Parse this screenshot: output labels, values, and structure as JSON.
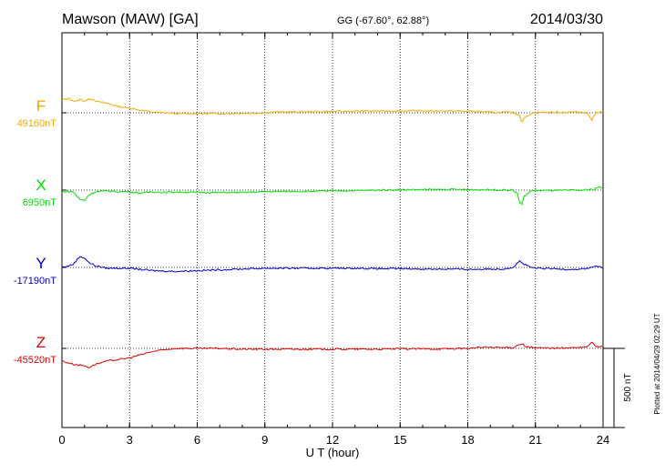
{
  "chart_data": {
    "type": "line",
    "title": "Mawson (MAW)  [GA]",
    "subtitle": "GG (-67.60°,  62.88°)",
    "date": "2014/03/30",
    "xlabel": "U T (hour)",
    "xlim": [
      0,
      24
    ],
    "xticks": [
      "0",
      "3",
      "6",
      "9",
      "12",
      "15",
      "18",
      "21",
      "24"
    ],
    "grid": true,
    "scale_bar_label": "500 nT",
    "footer": "Plotted at 2014/04/29 02:29 UT",
    "series": [
      {
        "name": "F",
        "baseline_label": "49160nT",
        "color": "#f0a800",
        "baseline": 49160,
        "points": [
          [
            0,
            80
          ],
          [
            0.3,
            90
          ],
          [
            0.6,
            70
          ],
          [
            0.8,
            85
          ],
          [
            1.0,
            75
          ],
          [
            1.3,
            90
          ],
          [
            1.6,
            70
          ],
          [
            2.0,
            60
          ],
          [
            2.5,
            40
          ],
          [
            3.0,
            30
          ],
          [
            3.5,
            15
          ],
          [
            4.0,
            5
          ],
          [
            4.5,
            0
          ],
          [
            5.0,
            -5
          ],
          [
            6.0,
            -5
          ],
          [
            7.0,
            -5
          ],
          [
            8.0,
            -3
          ],
          [
            9.0,
            0
          ],
          [
            9.5,
            5
          ],
          [
            10,
            5
          ],
          [
            11,
            7
          ],
          [
            12,
            8
          ],
          [
            13,
            10
          ],
          [
            14,
            11
          ],
          [
            15,
            12
          ],
          [
            16,
            12
          ],
          [
            17,
            12
          ],
          [
            18,
            10
          ],
          [
            18.9,
            5
          ],
          [
            19.2,
            0
          ],
          [
            19.5,
            3
          ],
          [
            20.0,
            2
          ],
          [
            20.3,
            -15
          ],
          [
            20.4,
            -55
          ],
          [
            20.5,
            -35
          ],
          [
            20.8,
            -5
          ],
          [
            21,
            2
          ],
          [
            22,
            3
          ],
          [
            23,
            5
          ],
          [
            23.3,
            0
          ],
          [
            23.5,
            -45
          ],
          [
            23.7,
            3
          ],
          [
            24,
            8
          ]
        ]
      },
      {
        "name": "X",
        "baseline_label": "6950nT",
        "color": "#00dd00",
        "baseline": 6950,
        "points": [
          [
            0,
            -10
          ],
          [
            0.5,
            -10
          ],
          [
            0.8,
            -60
          ],
          [
            1.0,
            -65
          ],
          [
            1.2,
            -30
          ],
          [
            1.5,
            -10
          ],
          [
            2.0,
            -5
          ],
          [
            2.5,
            -10
          ],
          [
            3.0,
            -10
          ],
          [
            3.5,
            -20
          ],
          [
            4.0,
            -10
          ],
          [
            4.5,
            -15
          ],
          [
            5.0,
            -12
          ],
          [
            6.0,
            -15
          ],
          [
            7.0,
            -15
          ],
          [
            8.0,
            -15
          ],
          [
            9.0,
            -10
          ],
          [
            10,
            -8
          ],
          [
            11,
            -8
          ],
          [
            12,
            -5
          ],
          [
            13,
            -3
          ],
          [
            14,
            0
          ],
          [
            15,
            2
          ],
          [
            16,
            3
          ],
          [
            17,
            4
          ],
          [
            18,
            3
          ],
          [
            19,
            2
          ],
          [
            20,
            0
          ],
          [
            20.2,
            -20
          ],
          [
            20.3,
            -80
          ],
          [
            20.4,
            -90
          ],
          [
            20.5,
            -40
          ],
          [
            20.8,
            -5
          ],
          [
            21,
            -3
          ],
          [
            22,
            -2
          ],
          [
            23,
            -1
          ],
          [
            23.6,
            5
          ],
          [
            23.8,
            20
          ],
          [
            24,
            10
          ]
        ]
      },
      {
        "name": "Y",
        "baseline_label": "-17190nT",
        "color": "#0000cc",
        "baseline": -17190,
        "points": [
          [
            0,
            0
          ],
          [
            0.3,
            10
          ],
          [
            0.5,
            20
          ],
          [
            0.8,
            70
          ],
          [
            1.0,
            60
          ],
          [
            1.2,
            30
          ],
          [
            1.5,
            10
          ],
          [
            2.0,
            -5
          ],
          [
            3.0,
            -5
          ],
          [
            4.0,
            -20
          ],
          [
            5.0,
            -25
          ],
          [
            6.0,
            -20
          ],
          [
            7.0,
            -15
          ],
          [
            8.0,
            -10
          ],
          [
            9.0,
            -5
          ],
          [
            10,
            -5
          ],
          [
            11,
            -5
          ],
          [
            12,
            -5
          ],
          [
            13,
            -5
          ],
          [
            14,
            -8
          ],
          [
            15,
            -8
          ],
          [
            16,
            -10
          ],
          [
            17,
            -10
          ],
          [
            18,
            -12
          ],
          [
            19,
            -10
          ],
          [
            19.5,
            -10
          ],
          [
            20,
            0
          ],
          [
            20.3,
            40
          ],
          [
            20.5,
            20
          ],
          [
            20.8,
            0
          ],
          [
            21,
            -5
          ],
          [
            22,
            -10
          ],
          [
            23,
            -12
          ],
          [
            23.5,
            0
          ],
          [
            23.7,
            10
          ],
          [
            24,
            -5
          ]
        ]
      },
      {
        "name": "Z",
        "baseline_label": "-45520nT",
        "color": "#dd0000",
        "baseline": -45520,
        "points": [
          [
            0,
            -80
          ],
          [
            0.5,
            -100
          ],
          [
            1.0,
            -110
          ],
          [
            1.2,
            -120
          ],
          [
            1.5,
            -100
          ],
          [
            2.0,
            -80
          ],
          [
            2.5,
            -70
          ],
          [
            3.0,
            -60
          ],
          [
            3.5,
            -40
          ],
          [
            4.0,
            -20
          ],
          [
            4.5,
            -10
          ],
          [
            5.0,
            0
          ],
          [
            6.0,
            0
          ],
          [
            7.0,
            0
          ],
          [
            8.0,
            -5
          ],
          [
            9.0,
            -5
          ],
          [
            10,
            -5
          ],
          [
            11,
            -5
          ],
          [
            12,
            -5
          ],
          [
            13,
            -5
          ],
          [
            14,
            -5
          ],
          [
            15,
            -3
          ],
          [
            16,
            -3
          ],
          [
            17,
            -3
          ],
          [
            18,
            0
          ],
          [
            18.8,
            8
          ],
          [
            19.2,
            5
          ],
          [
            20,
            5
          ],
          [
            20.2,
            20
          ],
          [
            20.4,
            30
          ],
          [
            20.6,
            10
          ],
          [
            21,
            3
          ],
          [
            22,
            2
          ],
          [
            23,
            5
          ],
          [
            23.3,
            10
          ],
          [
            23.5,
            40
          ],
          [
            23.7,
            10
          ],
          [
            24,
            10
          ]
        ]
      }
    ]
  }
}
